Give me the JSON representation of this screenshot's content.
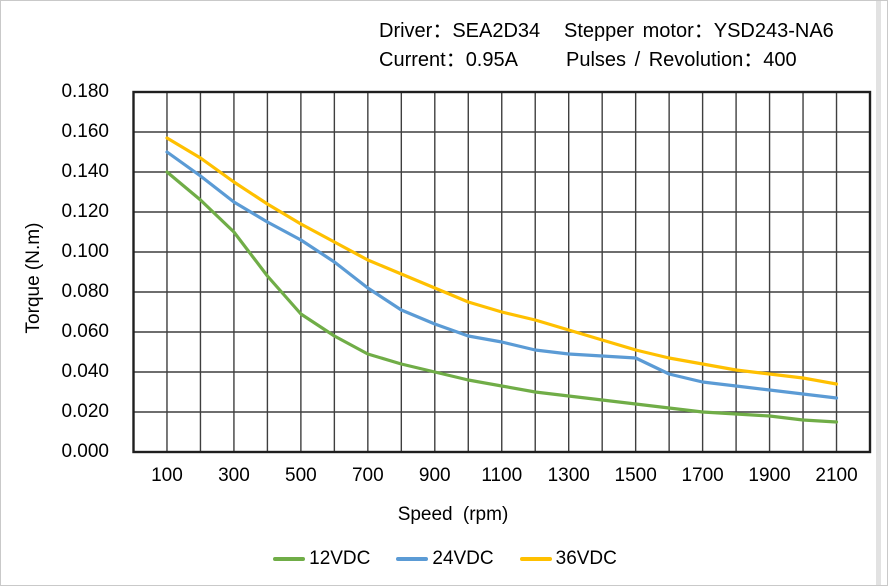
{
  "chart_data": {
    "type": "line",
    "title": "",
    "header": {
      "driver": "Driver：SEA2D34",
      "motor": "Stepper motor：YSD243-NA6",
      "current": "Current：0.95A",
      "pulses": "Pulses / Revolution：400"
    },
    "xlabel": "Speed (rpm)",
    "ylabel": "Torque (N.m)",
    "xlim": [
      0,
      2200
    ],
    "ylim": [
      0,
      0.18
    ],
    "xgrid_step": 100,
    "ytick_step": 0.02,
    "ytick_decimals": 3,
    "xticks_labeled": [
      100,
      300,
      500,
      700,
      900,
      1100,
      1300,
      1500,
      1700,
      1900,
      2100
    ],
    "grid": true,
    "legend_position": "bottom",
    "x": [
      100,
      200,
      300,
      400,
      500,
      600,
      700,
      800,
      900,
      1000,
      1100,
      1200,
      1300,
      1400,
      1500,
      1600,
      1700,
      1800,
      1900,
      2000,
      2100
    ],
    "series": [
      {
        "name": "12VDC",
        "color": "#70AD47",
        "values": [
          0.14,
          0.126,
          0.11,
          0.088,
          0.069,
          0.058,
          0.049,
          0.044,
          0.04,
          0.036,
          0.033,
          0.03,
          0.028,
          0.026,
          0.024,
          0.022,
          0.02,
          0.019,
          0.018,
          0.016,
          0.015
        ]
      },
      {
        "name": "24VDC",
        "color": "#5B9BD5",
        "values": [
          0.15,
          0.138,
          0.125,
          0.115,
          0.106,
          0.095,
          0.082,
          0.071,
          0.064,
          0.058,
          0.055,
          0.051,
          0.049,
          0.048,
          0.047,
          0.039,
          0.035,
          0.033,
          0.031,
          0.029,
          0.027
        ]
      },
      {
        "name": "36VDC",
        "color": "#FFC000",
        "values": [
          0.157,
          0.147,
          0.135,
          0.124,
          0.114,
          0.105,
          0.096,
          0.089,
          0.082,
          0.075,
          0.07,
          0.066,
          0.061,
          0.056,
          0.051,
          0.047,
          0.044,
          0.041,
          0.039,
          0.037,
          0.034
        ]
      }
    ]
  },
  "colors": {
    "grid": "#3f3f3f",
    "plot_border": "#1f1f1f",
    "text": "#000000",
    "frame": "#c9c9c9",
    "edge_strip": "#e2e2e2"
  }
}
